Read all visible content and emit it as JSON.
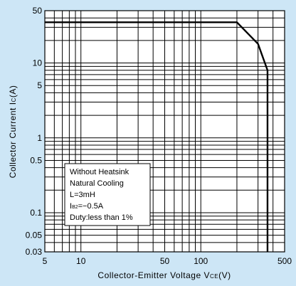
{
  "chart_data": {
    "type": "line",
    "title": "",
    "xlabel": "Collector-Emitter Voltage V",
    "xlabel_sub": "CE",
    "xlabel_suffix": "(V)",
    "ylabel": "Collector Current I",
    "ylabel_sub": "C",
    "ylabel_suffix": "(A)",
    "x_scale": "log",
    "y_scale": "log",
    "xlim": [
      5,
      500
    ],
    "ylim": [
      0.03,
      50
    ],
    "x_ticks": [
      {
        "value": 5,
        "label": "5"
      },
      {
        "value": 10,
        "label": "10"
      },
      {
        "value": 50,
        "label": "50"
      },
      {
        "value": 100,
        "label": "100"
      },
      {
        "value": 500,
        "label": "500"
      }
    ],
    "y_ticks": [
      {
        "value": 0.03,
        "label": "0.03"
      },
      {
        "value": 0.05,
        "label": "0.05"
      },
      {
        "value": 0.1,
        "label": "0.1"
      },
      {
        "value": 0.5,
        "label": "0.5"
      },
      {
        "value": 1,
        "label": "1"
      },
      {
        "value": 5,
        "label": "5"
      },
      {
        "value": 10,
        "label": "10"
      },
      {
        "value": 50,
        "label": "50"
      }
    ],
    "grid": true,
    "series": [
      {
        "points": [
          {
            "x": 5,
            "y": 35
          },
          {
            "x": 200,
            "y": 35
          },
          {
            "x": 300,
            "y": 18
          },
          {
            "x": 360,
            "y": 8
          },
          {
            "x": 360,
            "y": 0.03
          }
        ]
      }
    ],
    "annotation": {
      "lines": [
        {
          "text": "Without Heatsink"
        },
        {
          "text": "Natural Cooling"
        },
        {
          "text": "L=3mH"
        },
        {
          "text": "I",
          "sub": "B2",
          "suffix": "=−0.5A"
        },
        {
          "text": "Duty:less than 1%"
        }
      ]
    },
    "colors": {
      "background": "#cde6f6",
      "plot_background": "#ffffff",
      "grid": "#000000",
      "line": "#000000"
    }
  }
}
